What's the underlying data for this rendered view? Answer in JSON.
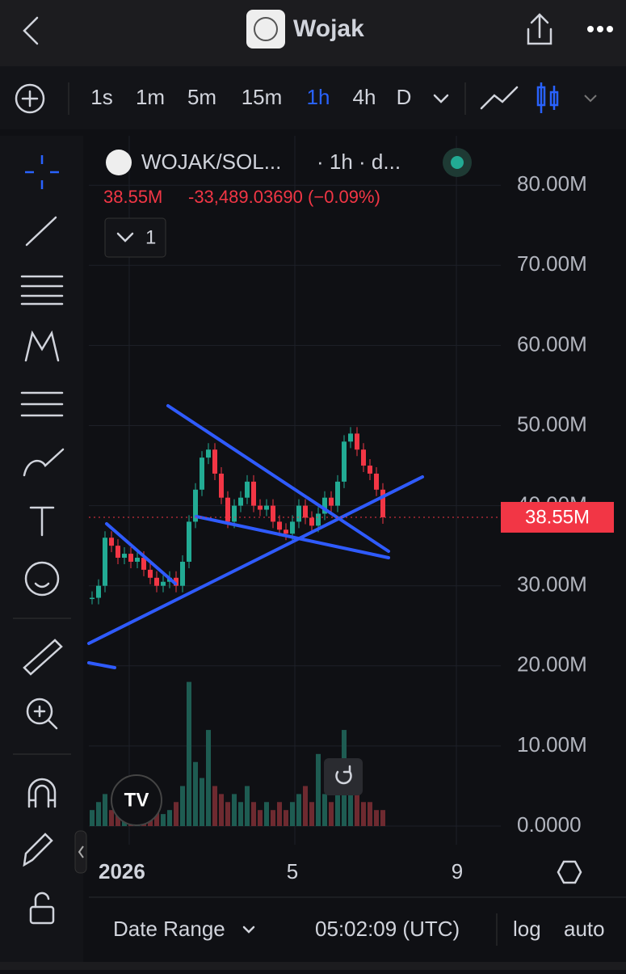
{
  "header": {
    "title": "Wojak"
  },
  "toolbar": {
    "intervals": [
      "1s",
      "1m",
      "5m",
      "15m",
      "1h",
      "4h",
      "D"
    ]
  },
  "legend": {
    "symbol": "WOJAK/SOL...",
    "meta": "· 1h · d...",
    "price": "38.55M",
    "change": "-33,489.03690 (−0.09%)",
    "indicators": "1"
  },
  "chart": {
    "yticks": [
      {
        "value": 80,
        "label": "80.00M"
      },
      {
        "value": 70,
        "label": "70.00M"
      },
      {
        "value": 60,
        "label": "60.00M"
      },
      {
        "value": 50,
        "label": "50.00M"
      },
      {
        "value": 40,
        "label": "40.00M"
      },
      {
        "value": 30,
        "label": "30.00M"
      },
      {
        "value": 20,
        "label": "20.00M"
      },
      {
        "value": 10,
        "label": "10.00M"
      },
      {
        "value": 0,
        "label": "0.0000"
      }
    ],
    "last_price": {
      "value": 38.55,
      "label": "38.55M"
    },
    "closes": [
      28.5,
      30,
      36,
      35,
      33.5,
      34,
      33,
      33.5,
      32,
      31,
      30,
      30.5,
      31,
      30,
      33,
      38,
      42,
      46,
      47,
      44,
      41,
      38,
      40,
      41,
      43,
      40,
      39.5,
      40,
      38,
      37,
      36.5,
      38,
      40,
      38.5,
      37.5,
      39,
      41,
      40,
      43,
      48,
      49,
      47,
      45,
      44,
      42,
      38.55
    ],
    "volumes": [
      2,
      3,
      4,
      2,
      2,
      1.5,
      2,
      3,
      2,
      1.5,
      2,
      1.5,
      2,
      3,
      5,
      18,
      8,
      6,
      12,
      5,
      4,
      3,
      4,
      3,
      5,
      3,
      2,
      3,
      2,
      3,
      2,
      3,
      4,
      5,
      3,
      9,
      4,
      3,
      5,
      12,
      7,
      4,
      3,
      3,
      2,
      2
    ],
    "x_labels": [
      "2026",
      "5",
      "9"
    ]
  },
  "footer": {
    "date_range": "Date Range",
    "time": "05:02:09 (UTC)",
    "log": "log",
    "auto": "auto"
  }
}
